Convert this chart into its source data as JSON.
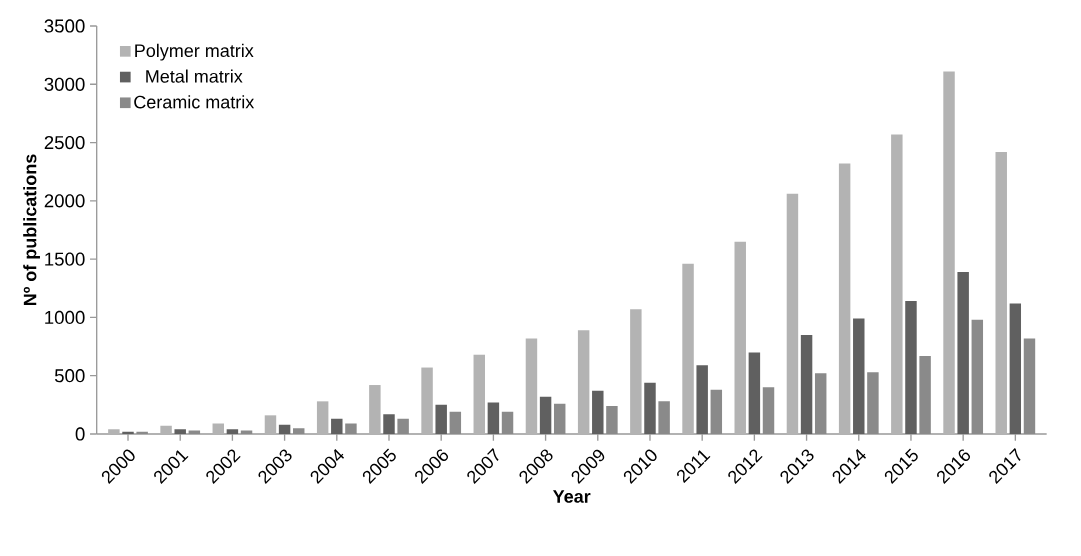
{
  "chart_data": {
    "type": "bar",
    "xlabel": "Year",
    "ylabel": "Nº of publications",
    "categories": [
      "2000",
      "2001",
      "2002",
      "2003",
      "2004",
      "2005",
      "2006",
      "2007",
      "2008",
      "2009",
      "2010",
      "2011",
      "2012",
      "2013",
      "2014",
      "2015",
      "2016",
      "2017"
    ],
    "series": [
      {
        "name": "Polymer matrix",
        "color": "#b3b3b3",
        "values": [
          40,
          70,
          90,
          160,
          280,
          420,
          570,
          680,
          820,
          890,
          1070,
          1460,
          1650,
          2060,
          2320,
          2570,
          3110,
          2420
        ]
      },
      {
        "name": "Metal matrix",
        "color": "#606060",
        "values": [
          20,
          40,
          40,
          80,
          130,
          170,
          250,
          270,
          320,
          370,
          440,
          590,
          700,
          850,
          990,
          1140,
          1390,
          1120
        ]
      },
      {
        "name": "Ceramic matrix",
        "color": "#8a8a8a",
        "values": [
          20,
          30,
          30,
          50,
          90,
          130,
          190,
          190,
          260,
          240,
          280,
          380,
          400,
          520,
          530,
          670,
          980,
          820
        ]
      }
    ],
    "ylim": [
      0,
      3500
    ],
    "yticks": [
      0,
      500,
      1000,
      1500,
      2000,
      2500,
      3000,
      3500
    ],
    "grid": false,
    "legend": "top left"
  }
}
